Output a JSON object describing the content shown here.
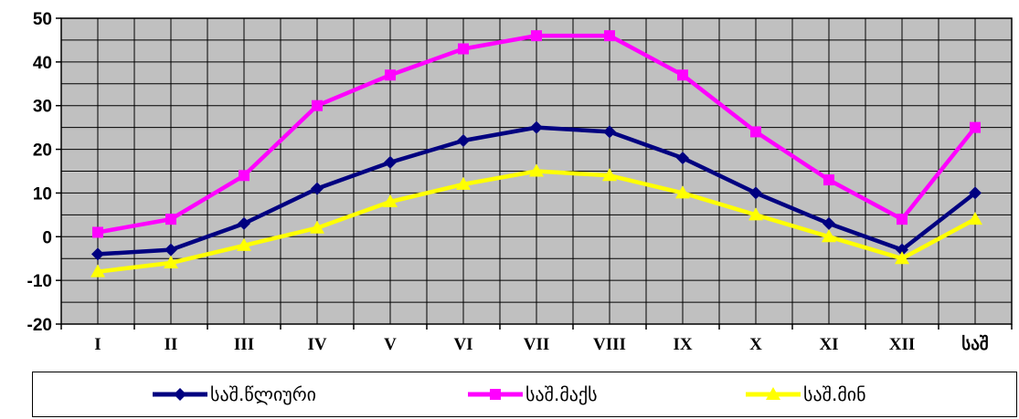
{
  "chart_data": {
    "type": "line",
    "categories": [
      "I",
      "II",
      "III",
      "IV",
      "V",
      "VI",
      "VII",
      "VIII",
      "IX",
      "X",
      "XI",
      "XII",
      "საშ"
    ],
    "ylim": [
      -20,
      50
    ],
    "yticks": [
      -20,
      -10,
      0,
      10,
      20,
      30,
      40,
      50
    ],
    "grid": true,
    "legend_position": "bottom",
    "plot_background": "#c0c0c0",
    "series": [
      {
        "name": "საშ.წლიური",
        "color": "#000080",
        "marker": "diamond",
        "values": [
          -4,
          -3,
          3,
          11,
          17,
          22,
          25,
          24,
          18,
          10,
          3,
          -3,
          10
        ]
      },
      {
        "name": "საშ.მაქს",
        "color": "#ff00ff",
        "marker": "square",
        "values": [
          1,
          4,
          14,
          30,
          37,
          43,
          46,
          46,
          37,
          24,
          13,
          4,
          25
        ]
      },
      {
        "name": "საშ.მინ",
        "color": "#ffff00",
        "marker": "triangle",
        "values": [
          -8,
          -6,
          -2,
          2,
          8,
          12,
          15,
          14,
          10,
          5,
          0,
          -5,
          4
        ]
      }
    ]
  }
}
